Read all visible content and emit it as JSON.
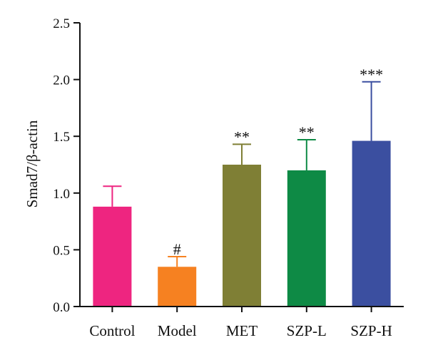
{
  "chart_data": {
    "type": "bar",
    "title": "",
    "xlabel": "",
    "ylabel": "Smad7/β-actin",
    "ylim": [
      0,
      2.5
    ],
    "yticks": [
      "0.0",
      "0.5",
      "1.0",
      "1.5",
      "2.0",
      "2.5"
    ],
    "grid": false,
    "categories": [
      "Control",
      "Model",
      "MET",
      "SZP-L",
      "SZP-H"
    ],
    "values": [
      0.88,
      0.35,
      1.25,
      1.2,
      1.46
    ],
    "error_upper": [
      1.06,
      0.44,
      1.43,
      1.47,
      1.98
    ],
    "colors": [
      "#ee2580",
      "#f68121",
      "#7f7f35",
      "#0e8a45",
      "#3b4fa0"
    ],
    "annotations": [
      "",
      "#",
      "**",
      "**",
      "***"
    ]
  }
}
